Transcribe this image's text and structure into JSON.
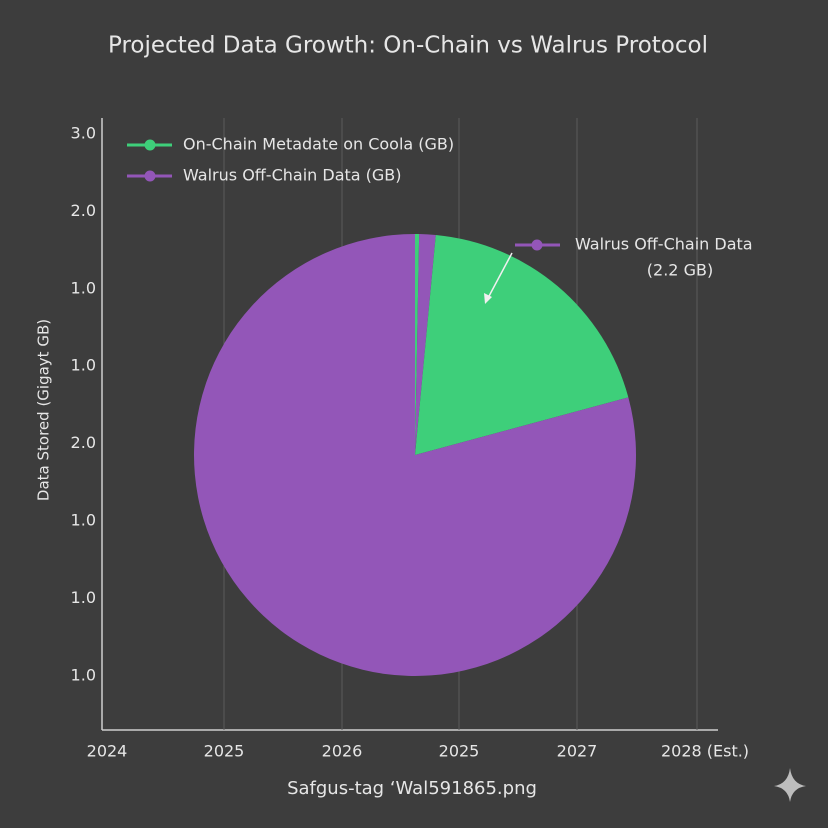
{
  "chart_data": {
    "type": "pie",
    "title": "Projected Data Growth: On-Chain vs Walrus Protocol",
    "ylabel": "Data Stored (Gigayt GB)",
    "xlabel": "Safgus-tag ‘Wal591865.png",
    "x_labels": [
      "2024",
      "2025",
      "2026",
      "2025",
      "2027",
      "2028 (Est.)"
    ],
    "y_labels": [
      "3.0",
      "2.0",
      "1.0",
      "1.0",
      "2.0",
      "1.0",
      "1.0",
      "1.0"
    ],
    "series": [
      {
        "name": "On-Chain Metadate on Coola (GB)",
        "color": "#3ecf7a"
      },
      {
        "name": "Walrus Off-Chain Data (GB)",
        "color": "#9356b8"
      }
    ],
    "categories": [
      null,
      null,
      null,
      null
    ],
    "values": [
      0.3,
      1.2,
      19.3,
      79.2
    ],
    "colors": [
      "#3ecf7a",
      "#9356b8",
      "#3ecf7a",
      "#9356b8"
    ],
    "annotation": [
      "Walrus Off-Chain Data",
      "(2.2 GB)"
    ],
    "grid": true
  }
}
